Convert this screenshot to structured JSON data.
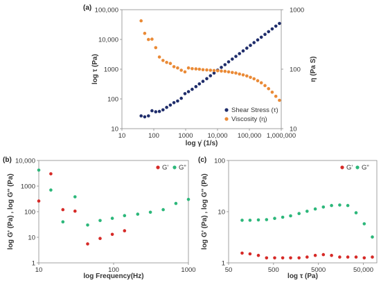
{
  "colors": {
    "navy": "#1f2d6b",
    "orange": "#ea8a36",
    "red": "#d62a27",
    "green": "#2cb77a"
  },
  "chart_data": [
    {
      "id": "a",
      "panel_label": "(a)",
      "type": "scatter",
      "x_scale": "log",
      "y_scale": "log",
      "y2_scale": "log",
      "xlabel": "log γ̇ (1/s)",
      "ylabel": "log τ (Pa)",
      "y2label": "η (Pa S)",
      "xlim": [
        10,
        1000000
      ],
      "ylim": [
        10,
        100000
      ],
      "y2lim": [
        10,
        1000
      ],
      "x_ticks": [
        10,
        100,
        1000,
        10000,
        100000,
        1000000
      ],
      "x_tick_labels": [
        "10",
        "100",
        "1000",
        "10,000",
        "100,000",
        "1,000,000"
      ],
      "y_ticks": [
        10,
        100,
        1000,
        10000,
        100000
      ],
      "y_tick_labels": [
        "10",
        "100",
        "1000",
        "10,000",
        "100,000"
      ],
      "y2_ticks": [
        10,
        100,
        1000
      ],
      "y2_tick_labels": [
        "10",
        "100",
        "1000"
      ],
      "legend_position": "bottom-right",
      "series": [
        {
          "name": "Shear Stress (τ)",
          "axis": "left",
          "color": "#1f2d6b",
          "x": [
            40,
            52,
            68,
            88,
            115,
            150,
            195,
            254,
            330,
            430,
            560,
            730,
            950,
            1230,
            1600,
            2100,
            2700,
            3500,
            4600,
            6000,
            7800,
            10100,
            13200,
            17200,
            22300,
            29000,
            37700,
            49000,
            63800,
            83000,
            108000,
            140000,
            182000,
            237000,
            308000,
            400000,
            520000,
            677000,
            880000
          ],
          "y": [
            27,
            25,
            27,
            40,
            37,
            38,
            43,
            52,
            62,
            75,
            85,
            105,
            150,
            175,
            210,
            260,
            320,
            390,
            480,
            600,
            740,
            930,
            1150,
            1420,
            1760,
            2180,
            2690,
            3330,
            4120,
            5100,
            6300,
            7800,
            9650,
            11900,
            14750,
            18250,
            22600,
            28000,
            34500
          ]
        },
        {
          "name": "Viscosity (η)",
          "axis": "right",
          "color": "#ea8a36",
          "x": [
            40,
            52,
            68,
            88,
            115,
            150,
            195,
            254,
            330,
            430,
            560,
            730,
            950,
            1230,
            1600,
            2100,
            2700,
            3500,
            4600,
            6000,
            7800,
            10100,
            13200,
            17200,
            22300,
            29000,
            37700,
            49000,
            63800,
            83000,
            108000,
            140000,
            182000,
            237000,
            308000,
            400000,
            520000,
            677000,
            880000
          ],
          "y": [
            650,
            400,
            315,
            320,
            230,
            160,
            140,
            130,
            125,
            110,
            105,
            96,
            90,
            105,
            102,
            101,
            100,
            98,
            97,
            96,
            95,
            94,
            93,
            92,
            90,
            88,
            86,
            83,
            80,
            77,
            73,
            69,
            64,
            59,
            53,
            47,
            41,
            35,
            30
          ]
        }
      ]
    },
    {
      "id": "b",
      "panel_label": "(b)",
      "type": "scatter",
      "x_scale": "log",
      "y_scale": "log",
      "xlabel": "log Frequency(Hz)",
      "ylabel": "log G' (Pa)    ,    log G'' (Pa)",
      "xlim": [
        10,
        1000
      ],
      "ylim": [
        1,
        10000
      ],
      "x_ticks": [
        10,
        100,
        1000
      ],
      "x_tick_labels": [
        "10",
        "100",
        "1000"
      ],
      "y_ticks": [
        1,
        10,
        100,
        1000,
        10000
      ],
      "y_tick_labels": [
        "1",
        "10",
        "100",
        "1000",
        "10,000"
      ],
      "legend_position": "top-right",
      "series": [
        {
          "name": "G'",
          "color": "#d62a27",
          "x": [
            10,
            14.5,
            21,
            30.5,
            45,
            66,
            96,
            140
          ],
          "y": [
            260,
            3000,
            120,
            105,
            5.5,
            9,
            13,
            18
          ]
        },
        {
          "name": "G\"",
          "color": "#2cb77a",
          "x": [
            10,
            14.5,
            21,
            30.5,
            45,
            66,
            96,
            140,
            210,
            310,
            460,
            680,
            1000
          ],
          "y": [
            4200,
            700,
            40,
            380,
            30,
            45,
            55,
            70,
            80,
            95,
            120,
            210,
            300
          ]
        }
      ]
    },
    {
      "id": "c",
      "panel_label": "(c)",
      "type": "scatter",
      "x_scale": "log",
      "y_scale": "log",
      "xlabel": "log τ (Pa)",
      "ylabel": "log G' (Pa)    ,    log G'' (Pa)",
      "xlim": [
        50,
        100000
      ],
      "ylim": [
        1,
        100
      ],
      "x_ticks": [
        50,
        500,
        5000,
        50000
      ],
      "x_tick_labels": [
        "50",
        "500",
        "5000",
        "50,000"
      ],
      "y_ticks": [
        1,
        10,
        100
      ],
      "y_tick_labels": [
        "1",
        "10",
        "100"
      ],
      "legend_position": "top-right",
      "series": [
        {
          "name": "G'",
          "color": "#d62a27",
          "x": [
            100,
            150,
            230,
            350,
            530,
            800,
            1200,
            1850,
            2800,
            4250,
            6450,
            9800,
            14900,
            22600,
            34400,
            52300,
            79500
          ],
          "y": [
            1.55,
            1.5,
            1.4,
            1.25,
            1.25,
            1.25,
            1.25,
            1.25,
            1.3,
            1.4,
            1.45,
            1.4,
            1.3,
            1.3,
            1.3,
            1.25,
            1.3
          ]
        },
        {
          "name": "G\"",
          "color": "#2cb77a",
          "x": [
            100,
            150,
            230,
            350,
            530,
            800,
            1200,
            1850,
            2800,
            4250,
            6450,
            9800,
            14900,
            22600,
            34400,
            52300,
            79500
          ],
          "y": [
            6.8,
            6.8,
            6.9,
            7.0,
            7.4,
            7.8,
            8.3,
            9.2,
            10.2,
            11.3,
            12.3,
            13.2,
            13.5,
            13.2,
            9.5,
            5.8,
            3.2
          ]
        }
      ]
    }
  ]
}
